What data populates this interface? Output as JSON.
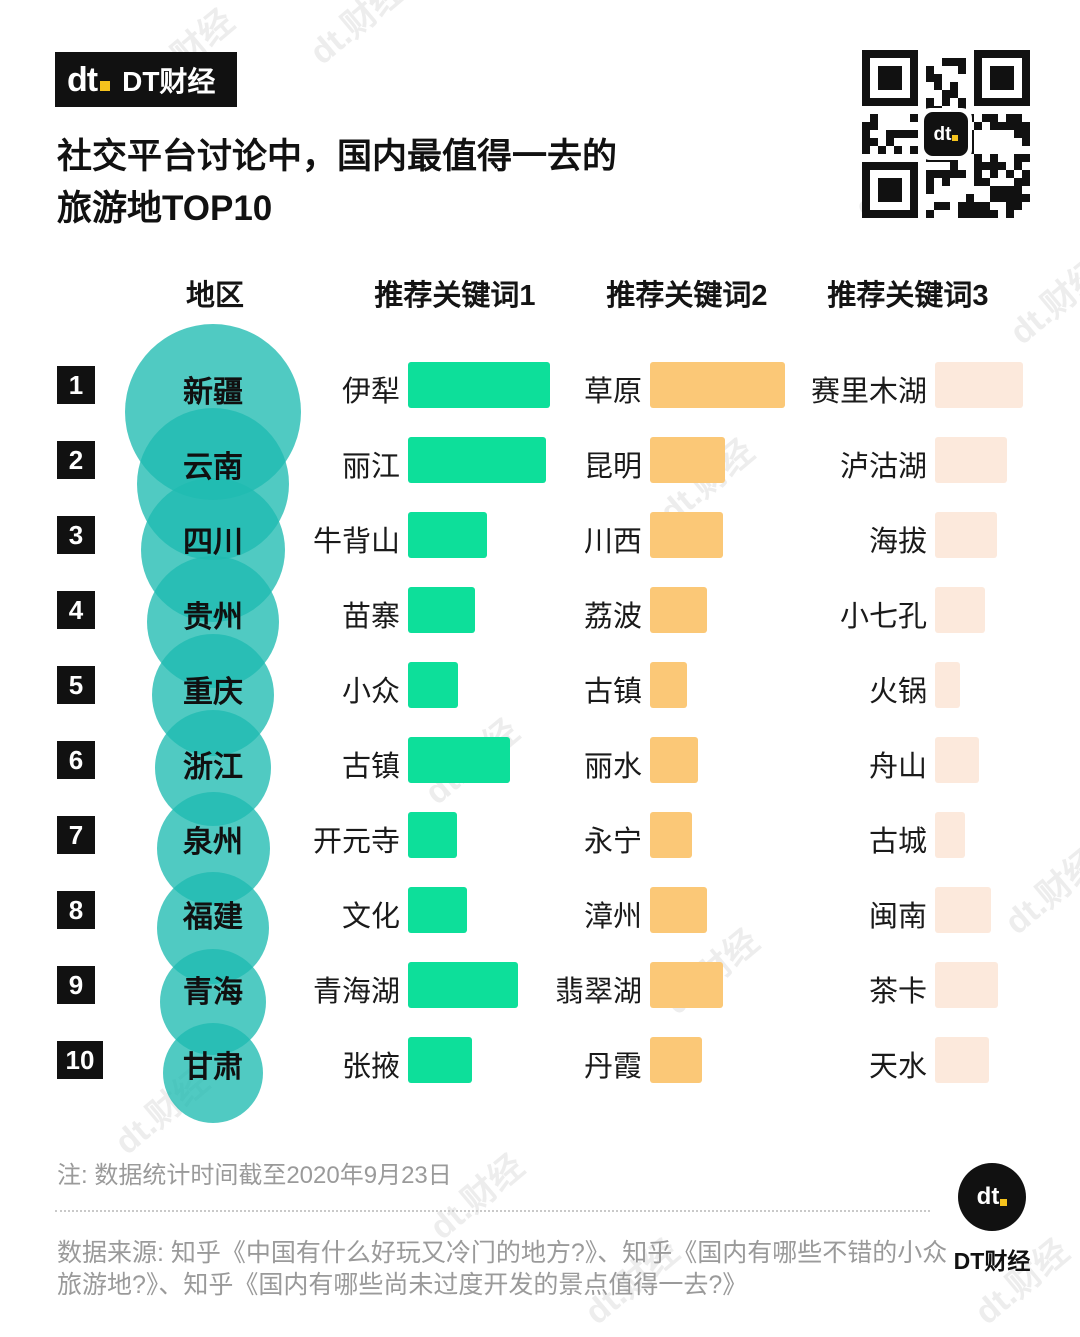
{
  "brand": {
    "name": "DT财经",
    "logo_text": "dt"
  },
  "header": {
    "title_line1": "社交平台讨论中，国内最值得一去的",
    "title_line2": "旅游地TOP10"
  },
  "chart_data": {
    "type": "table",
    "title": "社交平台讨论中，国内最值得一去的旅游地TOP10",
    "columns": [
      "地区",
      "推荐关键词1",
      "推荐关键词2",
      "推荐关键词3"
    ],
    "legend_note": "条形长度为相对热度（无数值轴），circle_size为地区气泡直径像素",
    "rows": [
      {
        "rank": "1",
        "region": "新疆",
        "circle_size": 176,
        "keywords": [
          {
            "text": "伊犁",
            "bar": 142
          },
          {
            "text": "草原",
            "bar": 135
          },
          {
            "text": "赛里木湖",
            "bar": 88
          }
        ]
      },
      {
        "rank": "2",
        "region": "云南",
        "circle_size": 152,
        "keywords": [
          {
            "text": "丽江",
            "bar": 138
          },
          {
            "text": "昆明",
            "bar": 75
          },
          {
            "text": "泸沽湖",
            "bar": 72
          }
        ]
      },
      {
        "rank": "3",
        "region": "四川",
        "circle_size": 144,
        "keywords": [
          {
            "text": "牛背山",
            "bar": 79
          },
          {
            "text": "川西",
            "bar": 73
          },
          {
            "text": "海拔",
            "bar": 62
          }
        ]
      },
      {
        "rank": "4",
        "region": "贵州",
        "circle_size": 132,
        "keywords": [
          {
            "text": "苗寨",
            "bar": 67
          },
          {
            "text": "荔波",
            "bar": 57
          },
          {
            "text": "小七孔",
            "bar": 50
          }
        ]
      },
      {
        "rank": "5",
        "region": "重庆",
        "circle_size": 122,
        "keywords": [
          {
            "text": "小众",
            "bar": 50
          },
          {
            "text": "古镇",
            "bar": 37
          },
          {
            "text": "火锅",
            "bar": 25
          }
        ]
      },
      {
        "rank": "6",
        "region": "浙江",
        "circle_size": 116,
        "keywords": [
          {
            "text": "古镇",
            "bar": 102
          },
          {
            "text": "丽水",
            "bar": 48
          },
          {
            "text": "舟山",
            "bar": 44
          }
        ]
      },
      {
        "rank": "7",
        "region": "泉州",
        "circle_size": 113,
        "keywords": [
          {
            "text": "开元寺",
            "bar": 49
          },
          {
            "text": "永宁",
            "bar": 42
          },
          {
            "text": "古城",
            "bar": 30
          }
        ]
      },
      {
        "rank": "8",
        "region": "福建",
        "circle_size": 112,
        "keywords": [
          {
            "text": "文化",
            "bar": 59
          },
          {
            "text": "漳州",
            "bar": 57
          },
          {
            "text": "闽南",
            "bar": 56
          }
        ]
      },
      {
        "rank": "9",
        "region": "青海",
        "circle_size": 106,
        "keywords": [
          {
            "text": "青海湖",
            "bar": 110
          },
          {
            "text": "翡翠湖",
            "bar": 73
          },
          {
            "text": "茶卡",
            "bar": 63
          }
        ]
      },
      {
        "rank": "10",
        "region": "甘肃",
        "circle_size": 100,
        "keywords": [
          {
            "text": "张掖",
            "bar": 64
          },
          {
            "text": "丹霞",
            "bar": 52
          },
          {
            "text": "天水",
            "bar": 54
          }
        ]
      }
    ],
    "colors": {
      "keyword1_bar": "#0ddf9a",
      "keyword2_bar": "#fbc877",
      "keyword3_bar": "#fce9dc",
      "region_circle": "#1fbbb1",
      "rank_badge": "#111111",
      "brand_yellow": "#f5c31d",
      "brand_black": "#111111",
      "text": "#141414",
      "footnote_gray": "#9a9a9a"
    }
  },
  "footer": {
    "note": "注: 数据统计时间截至2020年9月23日",
    "source": "数据来源: 知乎《中国有什么好玩又冷门的地方?》、知乎《国内有哪些不错的小众旅游地?》、知乎《国内有哪些尚未过度开发的景点值得一去?》"
  },
  "watermark": "dt.财经"
}
